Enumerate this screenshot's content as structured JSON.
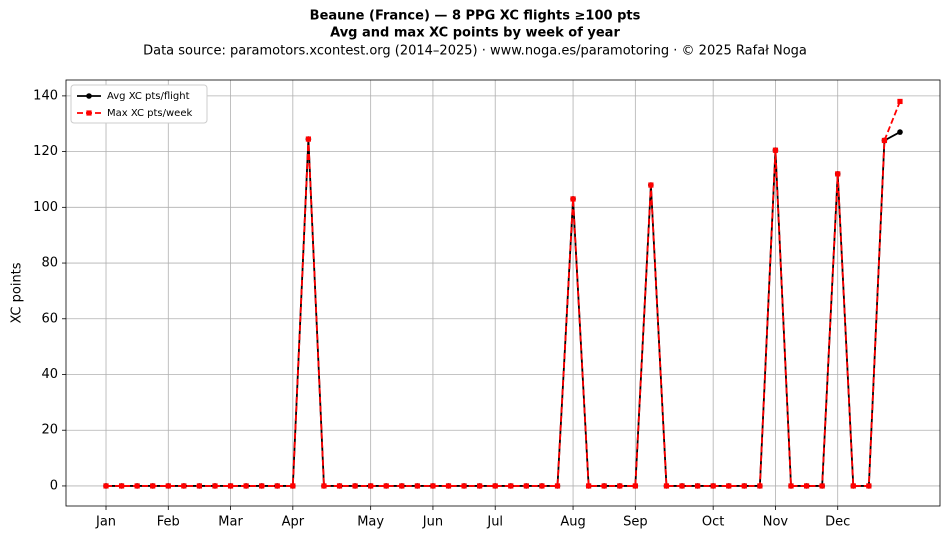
{
  "chart_data": {
    "type": "line",
    "title": "Beaune (France)  —  8 PPG XC flights ≥100 pts",
    "subtitle": "Avg and max XC points by week of year",
    "source": "Data source: paramotors.xcontest.org (2014–2025)  ·  www.noga.es/paramotoring  ·  © 2025 Rafał Noga",
    "ylabel": "XC points",
    "x": [
      1,
      2,
      3,
      4,
      5,
      6,
      7,
      8,
      9,
      10,
      11,
      12,
      13,
      14,
      15,
      16,
      17,
      18,
      19,
      20,
      21,
      22,
      23,
      24,
      25,
      26,
      27,
      28,
      29,
      30,
      31,
      32,
      33,
      34,
      35,
      36,
      37,
      38,
      39,
      40,
      41,
      42,
      43,
      44,
      45,
      46,
      47,
      48,
      49,
      50,
      51,
      52
    ],
    "series": [
      {
        "name": "Avg XC pts/flight",
        "color": "#000000",
        "dash": false,
        "marker": "circle",
        "values": [
          0,
          0,
          0,
          0,
          0,
          0,
          0,
          0,
          0,
          0,
          0,
          0,
          0,
          124.5,
          0,
          0,
          0,
          0,
          0,
          0,
          0,
          0,
          0,
          0,
          0,
          0,
          0,
          0,
          0,
          0,
          103,
          0,
          0,
          0,
          0,
          108,
          0,
          0,
          0,
          0,
          0,
          0,
          0,
          120.5,
          0,
          0,
          0,
          112,
          0,
          0,
          124,
          127
        ]
      },
      {
        "name": "Max XC pts/week",
        "color": "#ff0000",
        "dash": true,
        "marker": "square",
        "values": [
          0,
          0,
          0,
          0,
          0,
          0,
          0,
          0,
          0,
          0,
          0,
          0,
          0,
          124.5,
          0,
          0,
          0,
          0,
          0,
          0,
          0,
          0,
          0,
          0,
          0,
          0,
          0,
          0,
          0,
          0,
          103,
          0,
          0,
          0,
          0,
          108,
          0,
          0,
          0,
          0,
          0,
          0,
          0,
          120.5,
          0,
          0,
          0,
          112,
          0,
          0,
          124,
          138
        ]
      }
    ],
    "xlim": [
      -1.57,
      54.57
    ],
    "xticks": [
      {
        "value": 1,
        "label": "Jan"
      },
      {
        "value": 5,
        "label": "Feb"
      },
      {
        "value": 9,
        "label": "Mar"
      },
      {
        "value": 13,
        "label": "Apr"
      },
      {
        "value": 18,
        "label": "May"
      },
      {
        "value": 22,
        "label": "Jun"
      },
      {
        "value": 26,
        "label": "Jul"
      },
      {
        "value": 31,
        "label": "Aug"
      },
      {
        "value": 35,
        "label": "Sep"
      },
      {
        "value": 40,
        "label": "Oct"
      },
      {
        "value": 44,
        "label": "Nov"
      },
      {
        "value": 48,
        "label": "Dec"
      }
    ],
    "ylim": [
      -7.2,
      145.7
    ],
    "yticks": [
      0,
      20,
      40,
      60,
      80,
      100,
      120,
      140
    ],
    "grid": true,
    "legend": "upper left"
  }
}
